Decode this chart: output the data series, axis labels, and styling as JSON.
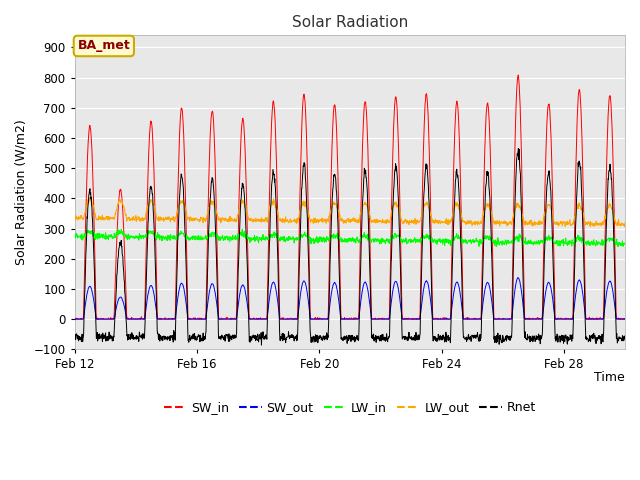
{
  "title": "Solar Radiation",
  "xlabel": "Time",
  "ylabel": "Solar Radiation (W/m2)",
  "ylim": [
    -100,
    940
  ],
  "yticks": [
    -100,
    0,
    100,
    200,
    300,
    400,
    500,
    600,
    700,
    800,
    900
  ],
  "annotation_text": "BA_met",
  "annotation_color": "#8B0000",
  "annotation_bg": "#FFFACD",
  "annotation_border": "#CCAA00",
  "fig_bg": "#FFFFFF",
  "plot_bg": "#E8E8E8",
  "above_plot_bg": "#D8D8D8",
  "grid_color": "white",
  "colors": {
    "SW_in": "#FF0000",
    "SW_out": "#0000FF",
    "LW_in": "#00FF00",
    "LW_out": "#FFA500",
    "Rnet": "#000000"
  },
  "xtick_labels": [
    "Feb 12",
    "Feb 16",
    "Feb 20",
    "Feb 24",
    "Feb 28"
  ],
  "xtick_positions": [
    0,
    4,
    8,
    12,
    16
  ],
  "n_days": 18,
  "n_per_day": 96,
  "sw_in_peaks": [
    640,
    430,
    655,
    700,
    690,
    665,
    720,
    745,
    710,
    720,
    735,
    745,
    720,
    715,
    805,
    715,
    760,
    740
  ]
}
